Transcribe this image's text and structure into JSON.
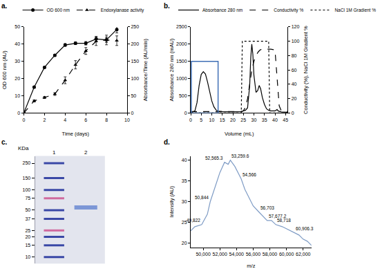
{
  "chart_data": [
    {
      "type": "line",
      "title": "a.",
      "x_label": "Time (days)",
      "y_label": "OD 600 nm (AU)",
      "y2_label": "Absorbance/Time (AU/min)",
      "xlim": [
        0,
        10
      ],
      "xticks": [
        0,
        2,
        4,
        6,
        8,
        10
      ],
      "ylim": [
        0,
        50
      ],
      "yticks": [
        0,
        10,
        20,
        30,
        40,
        50
      ],
      "y2lim": [
        0,
        250
      ],
      "y2ticks": [
        0,
        50,
        100,
        150,
        200,
        250
      ],
      "legend": "top",
      "grid": false,
      "x": [
        0,
        1,
        2,
        3,
        4,
        5,
        6,
        7,
        8,
        9
      ],
      "series": [
        {
          "name": "OD 600 nm",
          "color": "#000000",
          "marker": "circle",
          "line_style": "solid",
          "values": [
            0,
            15,
            26.5,
            33.5,
            39.5,
            40.5,
            40.5,
            43,
            42.5,
            48.5
          ],
          "error": [
            0,
            0.5,
            0.5,
            0.5,
            0.8,
            0.8,
            1,
            1.5,
            1.5,
            2
          ]
        },
        {
          "name": "Endoxylanase activity",
          "axis": "y2",
          "color": "#000000",
          "marker": "triangle-up",
          "line_style": "dash",
          "values": [
            0,
            35,
            45,
            55,
            95,
            140,
            180,
            208,
            212,
            210
          ],
          "error": [
            0,
            3,
            3,
            4,
            10,
            12,
            10,
            12,
            14,
            14
          ]
        }
      ]
    },
    {
      "type": "line",
      "title": "b.",
      "x_label": "Volume (mL)",
      "y_label": "Absorbance 280 nm (mAU)",
      "y2_label": "Conductivity (%), NaCl 1M Gradient %",
      "xlim": [
        0,
        46
      ],
      "xticks": [
        0,
        5,
        10,
        15,
        20,
        25,
        30,
        35,
        40,
        45
      ],
      "ylim": [
        0,
        2500
      ],
      "yticks": [
        0,
        500,
        1000,
        1500,
        2000,
        2500
      ],
      "y2lim": [
        0,
        120
      ],
      "y2ticks": [
        0,
        20,
        40,
        60,
        80,
        100,
        120
      ],
      "legend": "top",
      "grid": false,
      "highlight": {
        "x": [
          0.3,
          13
        ],
        "y": [
          0,
          1500
        ],
        "color": "#3f6fb5"
      },
      "series": [
        {
          "name": "Absorbance 280 nm",
          "color": "#000000",
          "line_style": "solid",
          "x": [
            0,
            1,
            2,
            3,
            4,
            5,
            6,
            7,
            8,
            9,
            10,
            11,
            12,
            13,
            15,
            20,
            24,
            26,
            27,
            28,
            28.5,
            29,
            29.5,
            30,
            31,
            31.8,
            32.5,
            33.2,
            34,
            35,
            36,
            37,
            38,
            40,
            41,
            41.5,
            43,
            46
          ],
          "values": [
            30,
            30,
            60,
            300,
            800,
            1120,
            1200,
            1130,
            900,
            600,
            350,
            180,
            90,
            50,
            40,
            35,
            40,
            80,
            150,
            800,
            1600,
            2000,
            1700,
            1100,
            600,
            650,
            800,
            700,
            450,
            250,
            120,
            80,
            60,
            60,
            100,
            60,
            30,
            20
          ]
        },
        {
          "name": "Conductivity %",
          "axis": "y2",
          "color": "#000000",
          "line_style": "dash",
          "x": [
            0,
            24,
            25,
            26,
            27,
            28,
            29,
            30,
            31,
            32,
            33,
            34,
            38,
            40,
            41,
            42,
            43,
            46
          ],
          "values": [
            2,
            2,
            3,
            8,
            20,
            40,
            60,
            72,
            80,
            85,
            88,
            89,
            89,
            88,
            50,
            10,
            3,
            2
          ]
        },
        {
          "name": "NaCl 1M Gradient %",
          "axis": "y2",
          "color": "#000000",
          "line_style": "dot",
          "x": [
            0,
            24,
            24.5,
            37,
            37.5,
            46
          ],
          "values": [
            0,
            0,
            100,
            100,
            0,
            0
          ]
        }
      ]
    },
    {
      "type": "gel",
      "title": "c.",
      "y_label": "KDa",
      "lanes": [
        "1",
        "2"
      ],
      "log": "y",
      "color": "#e3e5ee",
      "ylim": [
        8,
        320
      ],
      "yticks": [
        250,
        150,
        100,
        75,
        50,
        37,
        25,
        20,
        15,
        10
      ],
      "ladder": {
        "lane": "1",
        "values": [
          250,
          150,
          100,
          75,
          50,
          37,
          25,
          20,
          15,
          10
        ],
        "colors": [
          "#3a48a6",
          "#3a48a6",
          "#3a48a6",
          "#d06a9e",
          "#3a48a6",
          "#3a48a6",
          "#d06a9e",
          "#3a48a6",
          "#3a48a6",
          "#3a48a6"
        ]
      },
      "bands": [
        {
          "lane": "2",
          "value": 55,
          "color": "#7d97d6"
        }
      ]
    },
    {
      "type": "line",
      "title": "d.",
      "x_label": "m/z",
      "y_label": "Intensity (AU)",
      "xlim": [
        48500,
        63000
      ],
      "xticks": [
        {
          "value": 50000,
          "label": "50,000"
        },
        {
          "value": 52000,
          "label": "52,000"
        },
        {
          "value": 54000,
          "label": "54,000"
        },
        {
          "value": 56000,
          "label": "56,000"
        },
        {
          "value": 58000,
          "label": "58,000"
        },
        {
          "value": 60000,
          "label": "60,000"
        },
        {
          "value": 62000,
          "label": "62,000"
        }
      ],
      "ylim": [
        19,
        41
      ],
      "yticks": [
        20,
        25,
        30,
        35,
        40
      ],
      "grid": false,
      "series": [
        {
          "color": "#7f9cc5",
          "line_style": "solid",
          "x": [
            48500,
            49000,
            49822,
            50500,
            50844,
            51500,
            52000,
            52565.3,
            53000,
            53259.6,
            53800,
            54566,
            55000,
            55500,
            56000,
            56703,
            57200,
            57677.2,
            58200,
            58718,
            59500,
            60000,
            60906.3,
            61500,
            62000,
            62500,
            63000
          ],
          "values": [
            23,
            24,
            24.5,
            27,
            30,
            34,
            37,
            39.5,
            39,
            40,
            38.5,
            35.5,
            33,
            31,
            29,
            27.5,
            26.5,
            25.5,
            25.5,
            24.5,
            24,
            23.5,
            22.5,
            22,
            21,
            20.5,
            19.5
          ]
        }
      ],
      "annotations": [
        {
          "x": 49822,
          "y": 24.5,
          "text": "49,822"
        },
        {
          "x": 50844,
          "y": 30,
          "text": "50,844"
        },
        {
          "x": 52565.3,
          "y": 39.5,
          "text": "52,565.3"
        },
        {
          "x": 53259.6,
          "y": 40,
          "text": "53,259.6"
        },
        {
          "x": 54566,
          "y": 35.5,
          "text": "54,566"
        },
        {
          "x": 56703,
          "y": 27.5,
          "text": "56,703"
        },
        {
          "x": 57677.2,
          "y": 25.5,
          "text": "57,677.2"
        },
        {
          "x": 58718,
          "y": 24.5,
          "text": "58,718"
        },
        {
          "x": 60906.3,
          "y": 22.5,
          "text": "60,906.3"
        }
      ]
    }
  ]
}
